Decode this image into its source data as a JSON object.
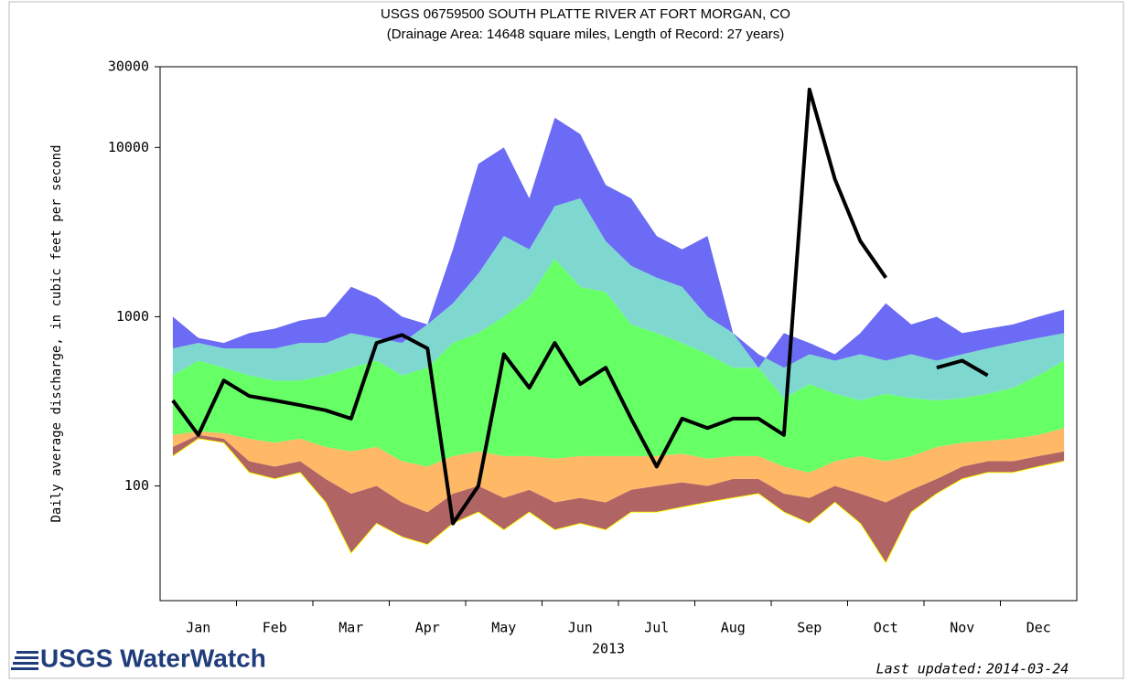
{
  "chart_data": {
    "type": "percentile-bands",
    "title": "USGS 06759500 SOUTH PLATTE RIVER AT FORT MORGAN, CO",
    "subtitle": "(Drainage Area: 14648 square miles, Length of Record: 27 years)",
    "y_label": "Daily average discharge, in cubic feet per second",
    "x_label": "2013",
    "categories": [
      null,
      "Jan",
      null,
      null,
      "Feb",
      null,
      null,
      "Mar",
      null,
      null,
      "Apr",
      null,
      null,
      "May",
      null,
      null,
      "Jun",
      null,
      null,
      "Jul",
      null,
      null,
      "Aug",
      null,
      null,
      "Sep",
      null,
      null,
      "Oct",
      null,
      null,
      "Nov",
      null,
      null,
      "Dec",
      null
    ],
    "log_scale": true,
    "ylim": [
      21,
      30000
    ],
    "yticks": [
      100,
      1000,
      10000,
      30000
    ],
    "lower": {
      "color": "#ffff00",
      "values": [
        150,
        190,
        180,
        120,
        110,
        120,
        80,
        40,
        60,
        50,
        45,
        60,
        70,
        55,
        70,
        55,
        60,
        55,
        70,
        70,
        75,
        80,
        85,
        90,
        70,
        60,
        80,
        60,
        35,
        70,
        90,
        110,
        120,
        120,
        130,
        140
      ]
    },
    "bands": [
      {
        "color": "#b06464",
        "values": [
          170,
          200,
          190,
          140,
          130,
          140,
          110,
          90,
          100,
          80,
          70,
          90,
          100,
          85,
          95,
          80,
          85,
          80,
          95,
          100,
          105,
          100,
          110,
          110,
          90,
          85,
          100,
          90,
          80,
          95,
          110,
          130,
          140,
          140,
          150,
          160
        ]
      },
      {
        "color": "#ffb866",
        "values": [
          200,
          210,
          205,
          190,
          180,
          190,
          170,
          160,
          170,
          140,
          130,
          150,
          160,
          150,
          150,
          145,
          150,
          150,
          150,
          150,
          155,
          145,
          150,
          150,
          130,
          120,
          140,
          150,
          140,
          150,
          170,
          180,
          185,
          190,
          200,
          220
        ]
      },
      {
        "color": "#66ff66",
        "values": [
          450,
          550,
          500,
          450,
          420,
          420,
          450,
          500,
          550,
          450,
          500,
          700,
          800,
          1000,
          1300,
          2200,
          1500,
          1400,
          900,
          800,
          700,
          600,
          500,
          500,
          330,
          400,
          350,
          320,
          350,
          330,
          320,
          330,
          350,
          380,
          450,
          550
        ]
      },
      {
        "color": "#7fd8d0",
        "values": [
          650,
          700,
          650,
          650,
          650,
          700,
          700,
          800,
          750,
          700,
          900,
          1200,
          1800,
          3000,
          2500,
          4500,
          5000,
          2800,
          2000,
          1700,
          1500,
          1000,
          800,
          600,
          500,
          600,
          550,
          600,
          550,
          600,
          550,
          600,
          650,
          700,
          750,
          800
        ]
      },
      {
        "color": "#6b6bf5",
        "values": [
          1000,
          750,
          700,
          800,
          850,
          950,
          1000,
          1500,
          1300,
          1000,
          900,
          2500,
          8000,
          10000,
          5000,
          15000,
          12000,
          6000,
          5000,
          3000,
          2500,
          3000,
          800,
          500,
          800,
          700,
          600,
          800,
          1200,
          900,
          1000,
          800,
          850,
          900,
          1000,
          1100
        ]
      }
    ],
    "line": {
      "color": "#000000",
      "values": [
        320,
        200,
        420,
        340,
        320,
        300,
        280,
        250,
        700,
        780,
        650,
        60,
        100,
        600,
        380,
        700,
        400,
        500,
        250,
        130,
        250,
        220,
        250,
        250,
        200,
        22000,
        6500,
        2800,
        1700,
        null,
        500,
        550,
        450,
        null,
        null,
        null
      ]
    }
  },
  "logo": "USGS WaterWatch",
  "footer": {
    "updated_label": "Last updated:",
    "updated_date": "2014-03-24"
  }
}
